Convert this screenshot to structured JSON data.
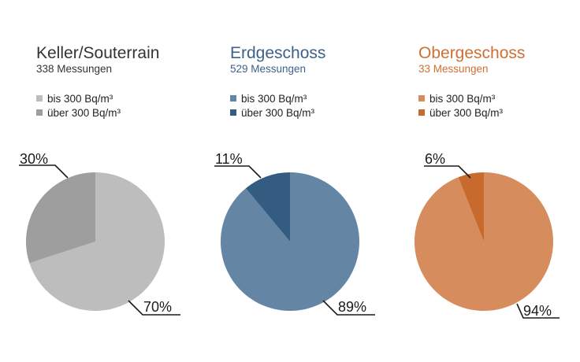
{
  "chart_data": [
    {
      "type": "pie",
      "title": "Keller/Souterrain",
      "subtitle": "338 Messungen",
      "title_color": "#333333",
      "slices": [
        {
          "label": "bis 300 Bq/m³",
          "value": 70,
          "value_label": "70%",
          "color": "#bdbdbd"
        },
        {
          "label": "über 300 Bq/m³",
          "value": 30,
          "value_label": "30%",
          "color": "#9e9e9e"
        }
      ]
    },
    {
      "type": "pie",
      "title": "Erdgeschoss",
      "subtitle": "529 Messungen",
      "title_color": "#3d6189",
      "slices": [
        {
          "label": "bis 300 Bq/m³",
          "value": 89,
          "value_label": "89%",
          "color": "#6485a3"
        },
        {
          "label": "über 300 Bq/m³",
          "value": 11,
          "value_label": "11%",
          "color": "#335c80"
        }
      ]
    },
    {
      "type": "pie",
      "title": "Obergeschoss",
      "subtitle": "33 Messungen",
      "title_color": "#cf6f36",
      "slices": [
        {
          "label": "bis 300 Bq/m³",
          "value": 94,
          "value_label": "94%",
          "color": "#d68c5c"
        },
        {
          "label": "über 300 Bq/m³",
          "value": 6,
          "value_label": "6%",
          "color": "#c8692e"
        }
      ]
    }
  ]
}
